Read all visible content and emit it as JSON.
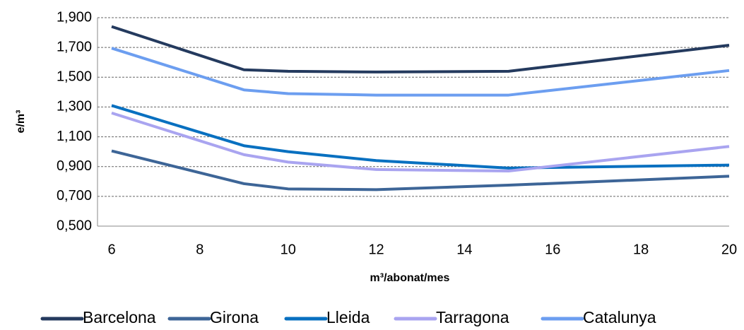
{
  "chart_data": {
    "type": "line",
    "x_label": "m³/abonat/mes",
    "y_label": "e/m³",
    "x": [
      6,
      9,
      10,
      12,
      15,
      20
    ],
    "series": [
      {
        "name": "Barcelona",
        "color": "#243a5e",
        "values": [
          1.84,
          1.55,
          1.54,
          1.535,
          1.54,
          1.715
        ]
      },
      {
        "name": "Girona",
        "color": "#3d6597",
        "values": [
          1.005,
          0.785,
          0.75,
          0.745,
          0.775,
          0.835
        ]
      },
      {
        "name": "Lleida",
        "color": "#0870c0",
        "values": [
          1.31,
          1.04,
          1.0,
          0.94,
          0.89,
          0.91
        ]
      },
      {
        "name": "Tarragona",
        "color": "#a9a4f0",
        "values": [
          1.26,
          0.98,
          0.93,
          0.88,
          0.87,
          1.035
        ]
      },
      {
        "name": "Catalunya",
        "color": "#6c9ef0",
        "values": [
          1.695,
          1.415,
          1.39,
          1.38,
          1.38,
          1.545
        ]
      }
    ],
    "xlim": [
      6,
      20
    ],
    "xticks": [
      6,
      8,
      10,
      12,
      14,
      16,
      18,
      20
    ],
    "ylim": [
      0.5,
      1.9
    ],
    "yticks": [
      {
        "value": 0.5,
        "label": "0,500"
      },
      {
        "value": 0.7,
        "label": "0,700"
      },
      {
        "value": 0.9,
        "label": "0,900"
      },
      {
        "value": 1.1,
        "label": "1,100"
      },
      {
        "value": 1.3,
        "label": "1,300"
      },
      {
        "value": 1.5,
        "label": "1,500"
      },
      {
        "value": 1.7,
        "label": "1,700"
      },
      {
        "value": 1.9,
        "label": "1,900"
      }
    ],
    "grid": true,
    "legend": "bottom"
  }
}
